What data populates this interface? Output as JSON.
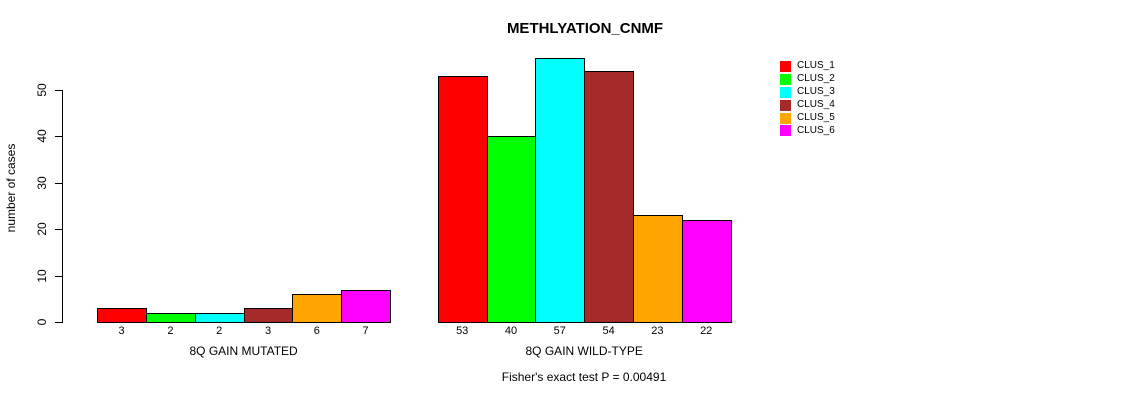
{
  "chart": {
    "title": "METHLYATION_CNMF",
    "ylabel": "number of cases",
    "caption": "Fisher's exact test P = 0.00491"
  },
  "chart_data": {
    "type": "bar",
    "title": "METHLYATION_CNMF",
    "xlabel": "",
    "ylabel": "number of cases",
    "annotation": "Fisher's exact test P = 0.00491",
    "categories": [
      "8Q GAIN MUTATED",
      "8Q GAIN WILD-TYPE"
    ],
    "series": [
      {
        "name": "CLUS_1",
        "color": "#FF0000",
        "values": [
          3,
          53
        ]
      },
      {
        "name": "CLUS_2",
        "color": "#00FF00",
        "values": [
          2,
          40
        ]
      },
      {
        "name": "CLUS_3",
        "color": "#00FFFF",
        "values": [
          2,
          57
        ]
      },
      {
        "name": "CLUS_4",
        "color": "#A52A2A",
        "values": [
          3,
          54
        ]
      },
      {
        "name": "CLUS_5",
        "color": "#FFA500",
        "values": [
          6,
          23
        ]
      },
      {
        "name": "CLUS_6",
        "color": "#FF00FF",
        "values": [
          7,
          22
        ]
      }
    ],
    "yticks": [
      0,
      10,
      20,
      30,
      40,
      50
    ],
    "ylim": [
      0,
      58
    ],
    "bar_value_labels": true,
    "legend_position": "right-outside",
    "grid": false
  }
}
